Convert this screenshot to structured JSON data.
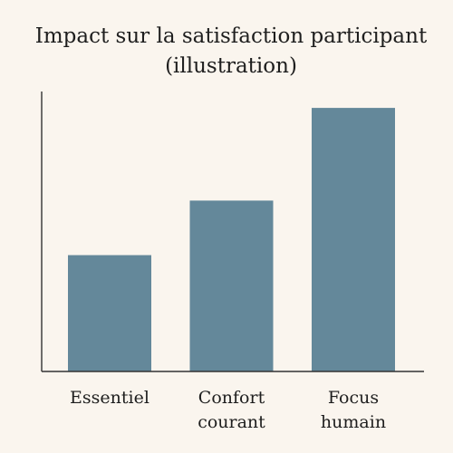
{
  "chart_data": {
    "type": "bar",
    "title": "Impact sur la satisfaction participant",
    "subtitle": "(illustration)",
    "categories": [
      "Essentiel",
      "Confort courant",
      "Focus humain"
    ],
    "category_lines": [
      [
        "Essentiel"
      ],
      [
        "Confort",
        "courant"
      ],
      [
        "Focus",
        "humain"
      ]
    ],
    "values": [
      32,
      47,
      72.5
    ],
    "ylim": [
      0,
      77
    ],
    "xlabel": "",
    "ylabel": "",
    "y_ticks_shown": false,
    "grid": false,
    "legend": false,
    "colors": {
      "bar": "#64889a",
      "axis": "#333333",
      "background": "#faf5ee"
    }
  }
}
